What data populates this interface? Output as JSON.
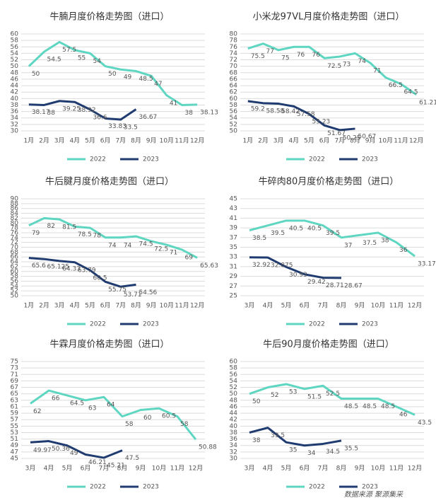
{
  "chart_data": [
    {
      "type": "line",
      "title": "牛腩月度价格走势图（进口）",
      "categories": [
        "1月",
        "2月",
        "3月",
        "4月",
        "5月",
        "6月",
        "7月",
        "8月",
        "9月",
        "10月",
        "11月",
        "12月"
      ],
      "series": [
        {
          "name": "2022",
          "color": "#5fd6c2",
          "values": [
            50,
            54.5,
            57.5,
            55,
            54,
            50,
            49,
            48.5,
            47,
            41,
            38,
            38.13
          ]
        },
        {
          "name": "2023",
          "color": "#1f3b70",
          "values": [
            38.17,
            38,
            39.25,
            38.92,
            36.6,
            33.83,
            33.5,
            36.67,
            null,
            null,
            null,
            null
          ]
        }
      ],
      "ylim": [
        30,
        60
      ],
      "yticks": [
        30,
        32,
        34,
        36,
        38,
        40,
        42,
        44,
        46,
        48,
        50,
        52,
        54,
        56,
        58,
        60
      ],
      "grid": true
    },
    {
      "type": "line",
      "title": "小米龙97VL月度价格走势图（进口）",
      "categories": [
        "1月",
        "2月",
        "3月",
        "4月",
        "5月",
        "6月",
        "7月",
        "8月",
        "9月",
        "10月",
        "11月",
        "12月"
      ],
      "series": [
        {
          "name": "2022",
          "color": "#5fd6c2",
          "values": [
            75.5,
            77,
            75,
            76,
            76,
            72.5,
            73,
            74,
            71,
            66.5,
            64.5,
            61.21
          ]
        },
        {
          "name": "2023",
          "color": "#1f3b70",
          "values": [
            59.2,
            58.58,
            58.42,
            57.58,
            55.23,
            51.67,
            50.25,
            50.67,
            null,
            null,
            null,
            null
          ]
        }
      ],
      "ylim": [
        50,
        80
      ],
      "yticks": [
        50,
        52,
        54,
        56,
        58,
        60,
        62,
        64,
        66,
        68,
        70,
        72,
        74,
        76,
        78,
        80
      ],
      "grid": true
    },
    {
      "type": "line",
      "title": "牛后腱月度价格走势图（进口）",
      "categories": [
        "1月",
        "2月",
        "3月",
        "4月",
        "5月",
        "6月",
        "7月",
        "8月",
        "9月",
        "10月",
        "11月",
        "12月"
      ],
      "series": [
        {
          "name": "2022",
          "color": "#5fd6c2",
          "values": [
            79,
            82,
            81.5,
            78.5,
            78,
            74,
            74,
            74.5,
            72.5,
            71,
            69,
            65.63
          ]
        },
        {
          "name": "2023",
          "color": "#1f3b70",
          "values": [
            65.6,
            65.125,
            64.33,
            63.79,
            60.5,
            55.75,
            53.71,
            54.56,
            null,
            null,
            null,
            null
          ]
        }
      ],
      "ylim": [
        50,
        90
      ],
      "yticks": [
        50,
        52,
        54,
        56,
        58,
        60,
        62,
        64,
        66,
        68,
        70,
        72,
        74,
        76,
        78,
        80,
        82,
        84,
        86,
        88,
        90
      ],
      "grid": true
    },
    {
      "type": "line",
      "title": "牛碎肉80月度价格走势图（进口）",
      "categories": [
        "3月",
        "4月",
        "5月",
        "6月",
        "7月",
        "8月",
        "9月",
        "10月",
        "11月",
        "12月"
      ],
      "series": [
        {
          "name": "2022",
          "color": "#5fd6c2",
          "values": [
            38.5,
            39.5,
            40.5,
            40.5,
            39.5,
            37,
            37.5,
            38,
            36,
            33.17
          ]
        },
        {
          "name": "2023",
          "color": "#1f3b70",
          "values": [
            32.92,
            32.875,
            30.93,
            29.42,
            28.71,
            28.67,
            null,
            null,
            null,
            null
          ]
        }
      ],
      "ylim": [
        25,
        45
      ],
      "yticks": [
        25,
        27,
        29,
        31,
        33,
        35,
        37,
        39,
        41,
        43,
        45
      ],
      "grid": true
    },
    {
      "type": "line",
      "title": "牛霖月度价格走势图（进口）",
      "categories": [
        "3月",
        "4月",
        "5月",
        "6月",
        "7月",
        "8月",
        "9月",
        "10月",
        "11月",
        "12月"
      ],
      "series": [
        {
          "name": "2022",
          "color": "#5fd6c2",
          "values": [
            62,
            66,
            64.5,
            63,
            64,
            58,
            60,
            60.5,
            58,
            50.88
          ]
        },
        {
          "name": "2023",
          "color": "#1f3b70",
          "values": [
            49.97,
            50.36,
            49,
            46.21,
            45.21,
            47.5,
            null,
            null,
            null,
            null
          ]
        }
      ],
      "ylim": [
        45,
        75
      ],
      "yticks": [
        45,
        47,
        49,
        51,
        53,
        55,
        57,
        59,
        61,
        63,
        65,
        67,
        69,
        71,
        73,
        75
      ],
      "grid": true
    },
    {
      "type": "line",
      "title": "牛后90月度价格走势图（进口）",
      "categories": [
        "3月",
        "4月",
        "5月",
        "6月",
        "7月",
        "8月",
        "9月",
        "10月",
        "11月",
        "12月"
      ],
      "series": [
        {
          "name": "2022",
          "color": "#5fd6c2",
          "values": [
            50,
            52,
            53,
            51.5,
            52.5,
            48.5,
            48.5,
            48.5,
            46,
            43.5
          ]
        },
        {
          "name": "2023",
          "color": "#1f3b70",
          "values": [
            38,
            39.5,
            35,
            34,
            34.5,
            35.5,
            null,
            null,
            null,
            null
          ]
        }
      ],
      "ylim": [
        30,
        60
      ],
      "yticks": [
        30,
        32,
        34,
        36,
        38,
        40,
        42,
        44,
        46,
        48,
        50,
        52,
        54,
        56,
        58,
        60
      ],
      "grid": true
    }
  ],
  "source": "数据来源   聚源集采"
}
